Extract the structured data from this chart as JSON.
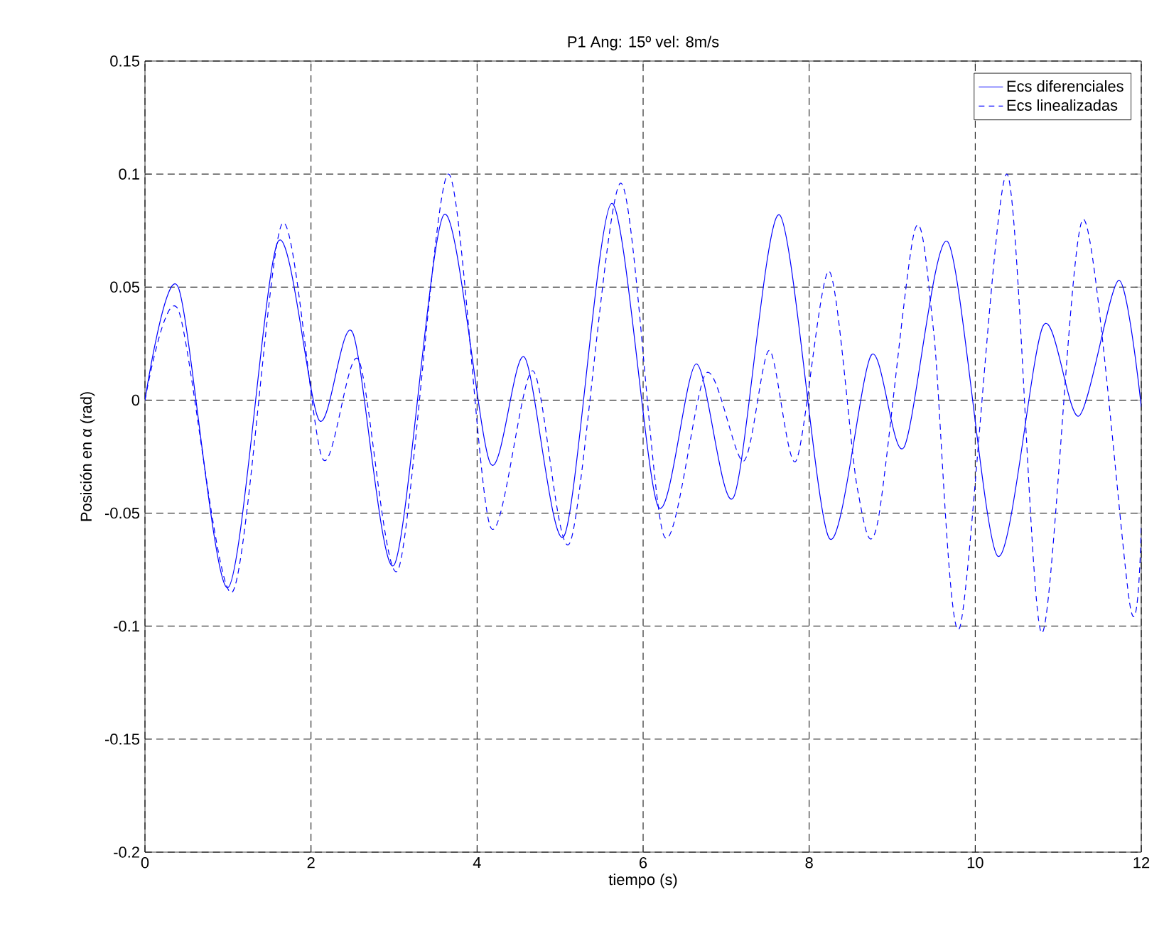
{
  "chart_data": {
    "type": "line",
    "title": "P1 Ang: 15º vel: 8m/s",
    "xlabel": "tiempo (s)",
    "ylabel": "Posición en α (rad)",
    "xlim": [
      0,
      12
    ],
    "ylim": [
      -0.2,
      0.15
    ],
    "xticks": [
      0,
      2,
      4,
      6,
      8,
      10,
      12
    ],
    "yticks": [
      -0.2,
      -0.15,
      -0.1,
      -0.05,
      0,
      0.05,
      0.1,
      0.15
    ],
    "grid": true,
    "legend": "top right",
    "series": [
      {
        "name": "Ecs diferenciales",
        "color": "#0000ff",
        "line_style": "solid",
        "x": [
          0,
          0.4,
          1.0,
          1.6,
          2.1,
          2.5,
          3.0,
          3.6,
          4.16,
          4.57,
          5.05,
          5.62,
          6.18,
          6.64,
          7.09,
          7.64,
          8.24,
          8.75,
          9.14,
          9.67,
          10.27,
          10.82,
          11.25,
          11.73,
          12
        ],
        "values": [
          0,
          0.05,
          -0.083,
          0.07,
          -0.009,
          0.03,
          -0.073,
          0.082,
          -0.028,
          0.019,
          -0.06,
          0.087,
          -0.047,
          0.016,
          -0.043,
          0.082,
          -0.061,
          0.02,
          -0.021,
          0.07,
          -0.069,
          0.033,
          -0.007,
          0.053,
          -0.003
        ]
      },
      {
        "name": "Ecs linealizadas",
        "color": "#0000ff",
        "line_style": "dashed",
        "x": [
          0,
          0.4,
          1.05,
          1.65,
          2.14,
          2.57,
          3.05,
          3.65,
          4.16,
          4.67,
          5.12,
          5.73,
          6.25,
          6.76,
          7.21,
          7.52,
          7.84,
          8.24,
          8.58,
          8.82,
          9.27,
          9.5,
          9.81,
          10.38,
          10.8,
          11.3,
          11.87,
          12
        ],
        "values": [
          0,
          0.04,
          -0.085,
          0.078,
          -0.026,
          0.018,
          -0.075,
          0.1,
          -0.056,
          0.013,
          -0.063,
          0.096,
          -0.06,
          0.012,
          -0.027,
          0.022,
          -0.027,
          0.057,
          -0.039,
          -0.055,
          0.075,
          0.03,
          -0.101,
          0.1,
          -0.103,
          0.08,
          -0.092,
          -0.055
        ]
      }
    ]
  }
}
